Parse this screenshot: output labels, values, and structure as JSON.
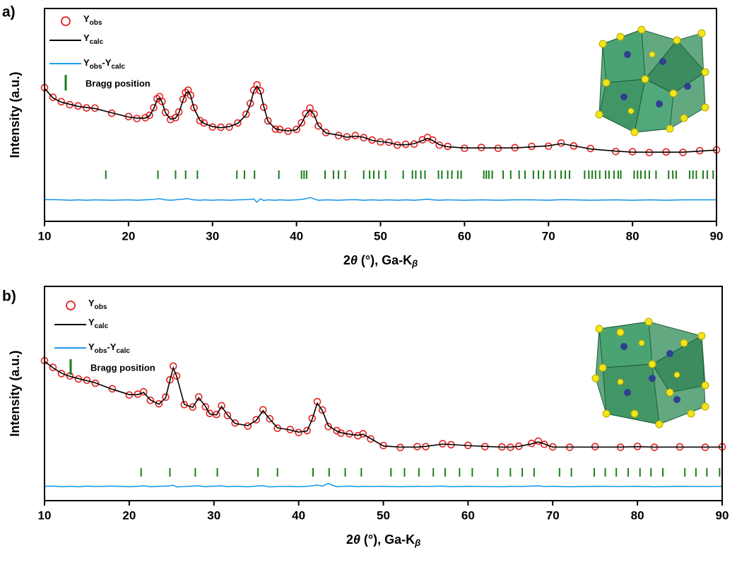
{
  "chart_data": [
    {
      "type": "line",
      "panel_label": "a)",
      "ylabel": "Intensity (a.u.)",
      "xlabel": "2θ (°), Ga-Kβ",
      "xlim": [
        10,
        90
      ],
      "xticks": [
        10,
        20,
        30,
        40,
        50,
        60,
        70,
        80,
        90
      ],
      "ylim": [
        0,
        100
      ],
      "x": [
        10,
        11,
        12,
        13,
        14,
        15,
        16,
        18,
        20,
        21,
        22,
        22.5,
        23,
        23.4,
        23.7,
        24,
        24.4,
        25,
        25.6,
        26,
        26.5,
        26.8,
        27.1,
        27.4,
        27.8,
        28.5,
        29,
        30,
        31,
        32,
        33,
        34,
        34.5,
        34.9,
        35.3,
        35.7,
        36.1,
        36.6,
        37.5,
        38,
        39,
        40,
        40.6,
        41.1,
        41.6,
        42.1,
        42.6,
        43.5,
        45,
        46,
        47,
        48,
        49,
        50,
        51,
        52,
        53,
        54,
        55,
        55.6,
        56.2,
        57,
        58,
        60,
        62,
        64,
        66,
        68,
        70,
        71.5,
        73,
        75,
        78,
        80,
        82,
        84,
        86,
        88,
        90
      ],
      "series": [
        {
          "name": "Yobs",
          "color": "#e32222",
          "marker": "circle",
          "values": [
            62.8,
            58.3,
            56.2,
            54.8,
            54.2,
            53.3,
            53.2,
            50.8,
            49.2,
            48.3,
            48.7,
            49.8,
            53.4,
            57.6,
            58.6,
            56.3,
            51.2,
            47.8,
            48.7,
            51.4,
            57.3,
            60.5,
            61.6,
            59.2,
            53.4,
            47.3,
            46.2,
            44.3,
            44.2,
            44.3,
            46.2,
            50.3,
            55.4,
            61.6,
            64.1,
            61.3,
            53.6,
            47.2,
            43.3,
            43.2,
            42.3,
            43.2,
            46.3,
            50.6,
            53.2,
            50.4,
            44.8,
            41.7,
            40.3,
            39.7,
            40.3,
            39.3,
            38.2,
            37.3,
            37.2,
            35.8,
            36.2,
            36.3,
            38.3,
            39.4,
            38.2,
            35.8,
            35.2,
            34.3,
            34.7,
            34.3,
            34.6,
            35.2,
            35.3,
            36.8,
            35.4,
            34.2,
            32.8,
            32.7,
            32.3,
            32.6,
            32.4,
            33.2,
            33.6
          ]
        },
        {
          "name": "Ycalc",
          "color": "#000000",
          "values": [
            62.5,
            58,
            56,
            55,
            54,
            53.5,
            53,
            51,
            49,
            48.5,
            48.5,
            49.5,
            53,
            57,
            58,
            56,
            51,
            48,
            48.5,
            51,
            57,
            60,
            61,
            59,
            53,
            47.5,
            46,
            44.5,
            44,
            44.5,
            46,
            50,
            55,
            61,
            63.5,
            61,
            54,
            47,
            43.5,
            43,
            42.5,
            43,
            46,
            50,
            52.5,
            50,
            45,
            41.5,
            40.5,
            39.5,
            40,
            39.5,
            38,
            37.5,
            37,
            36,
            36,
            36.5,
            38,
            39,
            38,
            36,
            35,
            34.5,
            34.5,
            34.5,
            34.5,
            35,
            35.5,
            36.5,
            35.5,
            34,
            33,
            32.5,
            32.5,
            32.5,
            32.5,
            33,
            33.5
          ]
        },
        {
          "name": "Yobs-Ycalc",
          "color": "#1e9be8",
          "values": [
            10.2,
            10.2,
            10.1,
            9.9,
            10.1,
            9.9,
            10.1,
            9.9,
            10.1,
            9.9,
            10.1,
            10.2,
            10.3,
            10.5,
            10.7,
            10.3,
            10.1,
            9.9,
            10.1,
            10.3,
            10.4,
            10.6,
            10.7,
            10.3,
            10.1,
            9.9,
            10.1,
            9.9,
            10.1,
            9.9,
            10.1,
            10.2,
            10.3,
            10.5,
            9,
            10.6,
            9.8,
            10.1,
            9.9,
            10.1,
            9.9,
            10.1,
            10.3,
            10.6,
            11.2,
            10.5,
            9.9,
            10.1,
            9.9,
            10.1,
            10.2,
            9.9,
            10.1,
            9.9,
            10.1,
            9.9,
            10.1,
            9.9,
            10.2,
            10.4,
            10.1,
            9.9,
            10.1,
            9.9,
            10.1,
            9.9,
            10.1,
            10.1,
            9.9,
            10.2,
            10.1,
            9.9,
            10.1,
            9.9,
            10.1,
            9.9,
            10.1,
            10.1,
            10.1
          ]
        }
      ],
      "bragg": {
        "name": "Bragg position",
        "color": "#1b7c1b",
        "positions": [
          17.3,
          23.5,
          25.6,
          26.8,
          28.2,
          32.9,
          33.8,
          35.0,
          37.9,
          40.6,
          40.9,
          41.2,
          43.4,
          44.4,
          45.0,
          45.8,
          48.0,
          48.7,
          49.2,
          49.8,
          50.6,
          52.7,
          53.8,
          54.2,
          54.8,
          55.3,
          56.9,
          57.3,
          58.0,
          58.5,
          59.2,
          59.6,
          62.3,
          62.6,
          62.9,
          63.3,
          64.6,
          65.5,
          66.5,
          67.2,
          68.2,
          68.8,
          69.4,
          70.2,
          70.8,
          71.5,
          72.0,
          72.5,
          74.3,
          74.8,
          75.2,
          75.6,
          76.1,
          76.8,
          77.2,
          77.8,
          78.3,
          78.6,
          80.2,
          80.6,
          81.0,
          81.5,
          82.0,
          82.8,
          84.3,
          84.8,
          85.2,
          86.8,
          87.2,
          87.6,
          88.4,
          88.9,
          89.6
        ]
      }
    },
    {
      "type": "line",
      "panel_label": "b)",
      "ylabel": "Intensity (a.u.)",
      "xlabel": "2θ (°), Ga-Kβ",
      "xlim": [
        10,
        90
      ],
      "xticks": [
        10,
        20,
        30,
        40,
        50,
        60,
        70,
        80,
        90
      ],
      "ylim": [
        0,
        100
      ],
      "x": [
        10,
        11,
        12,
        13,
        14,
        15,
        16,
        18,
        20,
        21,
        21.7,
        22.5,
        23.5,
        24.3,
        24.8,
        25.2,
        25.6,
        26.5,
        27.5,
        28.2,
        29,
        29.5,
        30.3,
        30.9,
        31.6,
        32.5,
        34,
        35,
        35.8,
        36.6,
        37.5,
        39,
        40,
        41,
        41.6,
        42.2,
        42.8,
        43.5,
        44.5,
        45,
        46,
        47,
        47.6,
        48.5,
        50,
        52,
        54,
        55,
        57,
        58,
        60,
        62,
        64,
        65,
        66,
        67.5,
        68.3,
        69,
        70,
        72,
        75,
        78,
        80,
        82,
        85,
        88,
        90
      ],
      "series": [
        {
          "name": "Yobs",
          "color": "#e32222",
          "marker": "circle",
          "values": [
            65.3,
            62.2,
            59.3,
            58.2,
            56.8,
            56.2,
            54.8,
            52.2,
            49.3,
            49.7,
            50.8,
            46.8,
            45.2,
            48.3,
            56.4,
            62.8,
            58.2,
            44.8,
            43.7,
            48.4,
            43.8,
            40.7,
            40.2,
            44.3,
            39.8,
            36.2,
            34.8,
            37.8,
            42.4,
            38.2,
            33.8,
            33.2,
            31.8,
            32.7,
            38.4,
            46.2,
            42.3,
            34.6,
            32.7,
            31.5,
            31.2,
            30.3,
            31.2,
            28.8,
            25.7,
            24.8,
            25.2,
            25.2,
            26.6,
            26.1,
            25.8,
            25.2,
            25.1,
            24.9,
            25.4,
            26.7,
            27.8,
            26.3,
            25.1,
            24.9,
            25.2,
            24.9,
            25.3,
            24.9,
            25.1,
            24.9,
            25.1
          ]
        },
        {
          "name": "Ycalc",
          "color": "#000000",
          "values": [
            65,
            62,
            59.5,
            58,
            57,
            56,
            55,
            52,
            49.5,
            49.5,
            50.5,
            47,
            45,
            48,
            56,
            62,
            58,
            45,
            43.5,
            48,
            44,
            40.5,
            40,
            44,
            40,
            36,
            35,
            37.5,
            42,
            38,
            34,
            33,
            32,
            32.5,
            38,
            45.5,
            42,
            35,
            32.5,
            31.7,
            31,
            30.5,
            31,
            29,
            25.5,
            25,
            25,
            25.3,
            26.4,
            26.2,
            25.7,
            25.3,
            25,
            25,
            25.3,
            26.5,
            27.4,
            26.5,
            25,
            25,
            25,
            25,
            25.2,
            25,
            25,
            25,
            25
          ]
        },
        {
          "name": "Yobs-Ycalc",
          "color": "#1e9be8",
          "values": [
            6.7,
            6.8,
            6.5,
            6.7,
            6.5,
            6.8,
            6.6,
            6.8,
            6.5,
            6.7,
            6.9,
            6.5,
            6.7,
            6.8,
            7,
            7.2,
            6.4,
            6.6,
            6.8,
            6.9,
            6.5,
            6.7,
            6.8,
            6.9,
            6.5,
            6.7,
            6.5,
            6.8,
            7,
            6.4,
            6.6,
            6.7,
            6.5,
            6.7,
            6.9,
            7.3,
            6.8,
            8,
            6.5,
            6.6,
            6.8,
            6.5,
            6.7,
            6.6,
            6.7,
            6.5,
            6.7,
            6.6,
            6.8,
            6.5,
            6.7,
            6.6,
            6.5,
            6.7,
            6.6,
            6.8,
            6.9,
            6.6,
            6.7,
            6.5,
            6.7,
            6.6,
            6.7,
            6.5,
            6.7,
            6.6,
            6.7
          ]
        }
      ],
      "bragg": {
        "name": "Bragg position",
        "color": "#1b7c1b",
        "positions": [
          21.4,
          24.8,
          27.8,
          30.4,
          35.2,
          37.5,
          41.7,
          43.6,
          45.5,
          47.4,
          50.9,
          52.5,
          54.2,
          55.9,
          57.3,
          59.0,
          60.5,
          63.5,
          65.0,
          66.4,
          67.8,
          70.8,
          72.2,
          74.9,
          76.2,
          77.5,
          78.9,
          80.3,
          81.6,
          83.0,
          85.6,
          86.9,
          88.2,
          89.7
        ]
      }
    }
  ]
}
